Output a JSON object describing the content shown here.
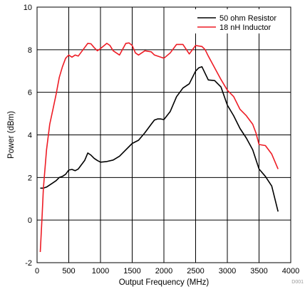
{
  "chart_data": {
    "type": "line",
    "xlabel": "Output Frequency (MHz)",
    "ylabel": "Power (dBm)",
    "xlim": [
      0,
      4000
    ],
    "ylim": [
      -2,
      10
    ],
    "xticks": [
      0,
      500,
      1000,
      1500,
      2000,
      2500,
      3000,
      3500,
      4000
    ],
    "yticks": [
      -2,
      0,
      2,
      4,
      6,
      8,
      10
    ],
    "grid": true,
    "legend_position": "top-right",
    "footnote": "D001",
    "series": [
      {
        "name": "50 ohm Resistor",
        "color": "#000000",
        "points": [
          [
            50,
            1.5
          ],
          [
            100,
            1.5
          ],
          [
            150,
            1.55
          ],
          [
            200,
            1.65
          ],
          [
            250,
            1.75
          ],
          [
            300,
            1.85
          ],
          [
            350,
            2.0
          ],
          [
            400,
            2.05
          ],
          [
            450,
            2.15
          ],
          [
            500,
            2.35
          ],
          [
            550,
            2.38
          ],
          [
            600,
            2.32
          ],
          [
            650,
            2.4
          ],
          [
            700,
            2.6
          ],
          [
            750,
            2.8
          ],
          [
            800,
            3.15
          ],
          [
            850,
            3.05
          ],
          [
            900,
            2.9
          ],
          [
            950,
            2.8
          ],
          [
            1000,
            2.72
          ],
          [
            1100,
            2.75
          ],
          [
            1200,
            2.82
          ],
          [
            1300,
            3.0
          ],
          [
            1400,
            3.3
          ],
          [
            1500,
            3.6
          ],
          [
            1600,
            3.75
          ],
          [
            1700,
            4.1
          ],
          [
            1800,
            4.5
          ],
          [
            1850,
            4.7
          ],
          [
            1900,
            4.75
          ],
          [
            1950,
            4.75
          ],
          [
            2000,
            4.72
          ],
          [
            2100,
            5.1
          ],
          [
            2200,
            5.8
          ],
          [
            2300,
            6.2
          ],
          [
            2400,
            6.4
          ],
          [
            2450,
            6.7
          ],
          [
            2500,
            7.0
          ],
          [
            2550,
            7.15
          ],
          [
            2600,
            7.2
          ],
          [
            2700,
            6.58
          ],
          [
            2800,
            6.55
          ],
          [
            2900,
            6.25
          ],
          [
            3000,
            5.4
          ],
          [
            3100,
            4.9
          ],
          [
            3200,
            4.3
          ],
          [
            3300,
            3.85
          ],
          [
            3400,
            3.3
          ],
          [
            3500,
            2.4
          ],
          [
            3600,
            2.05
          ],
          [
            3700,
            1.6
          ],
          [
            3800,
            0.4
          ]
        ]
      },
      {
        "name": "18 nH Inductor",
        "color": "#ee1c25",
        "points": [
          [
            50,
            -1.5
          ],
          [
            80,
            0.2
          ],
          [
            100,
            1.5
          ],
          [
            150,
            3.3
          ],
          [
            200,
            4.5
          ],
          [
            250,
            5.2
          ],
          [
            300,
            5.9
          ],
          [
            350,
            6.7
          ],
          [
            400,
            7.2
          ],
          [
            450,
            7.6
          ],
          [
            500,
            7.75
          ],
          [
            550,
            7.65
          ],
          [
            600,
            7.75
          ],
          [
            650,
            7.7
          ],
          [
            700,
            7.9
          ],
          [
            750,
            8.1
          ],
          [
            800,
            8.3
          ],
          [
            850,
            8.28
          ],
          [
            900,
            8.1
          ],
          [
            950,
            7.95
          ],
          [
            1000,
            8.05
          ],
          [
            1100,
            8.3
          ],
          [
            1150,
            8.2
          ],
          [
            1200,
            7.95
          ],
          [
            1300,
            7.75
          ],
          [
            1400,
            8.3
          ],
          [
            1450,
            8.32
          ],
          [
            1500,
            8.2
          ],
          [
            1550,
            7.85
          ],
          [
            1600,
            7.75
          ],
          [
            1700,
            7.95
          ],
          [
            1800,
            7.9
          ],
          [
            1850,
            7.75
          ],
          [
            1900,
            7.7
          ],
          [
            2000,
            7.6
          ],
          [
            2100,
            7.85
          ],
          [
            2200,
            8.25
          ],
          [
            2300,
            8.25
          ],
          [
            2400,
            7.8
          ],
          [
            2500,
            8.2
          ],
          [
            2600,
            8.15
          ],
          [
            2650,
            8.0
          ],
          [
            2700,
            7.7
          ],
          [
            2800,
            7.15
          ],
          [
            2900,
            6.6
          ],
          [
            3000,
            6.1
          ],
          [
            3100,
            5.8
          ],
          [
            3200,
            5.2
          ],
          [
            3300,
            4.9
          ],
          [
            3400,
            4.5
          ],
          [
            3450,
            4.1
          ],
          [
            3500,
            3.55
          ],
          [
            3600,
            3.5
          ],
          [
            3700,
            3.1
          ],
          [
            3800,
            2.4
          ]
        ]
      }
    ]
  }
}
